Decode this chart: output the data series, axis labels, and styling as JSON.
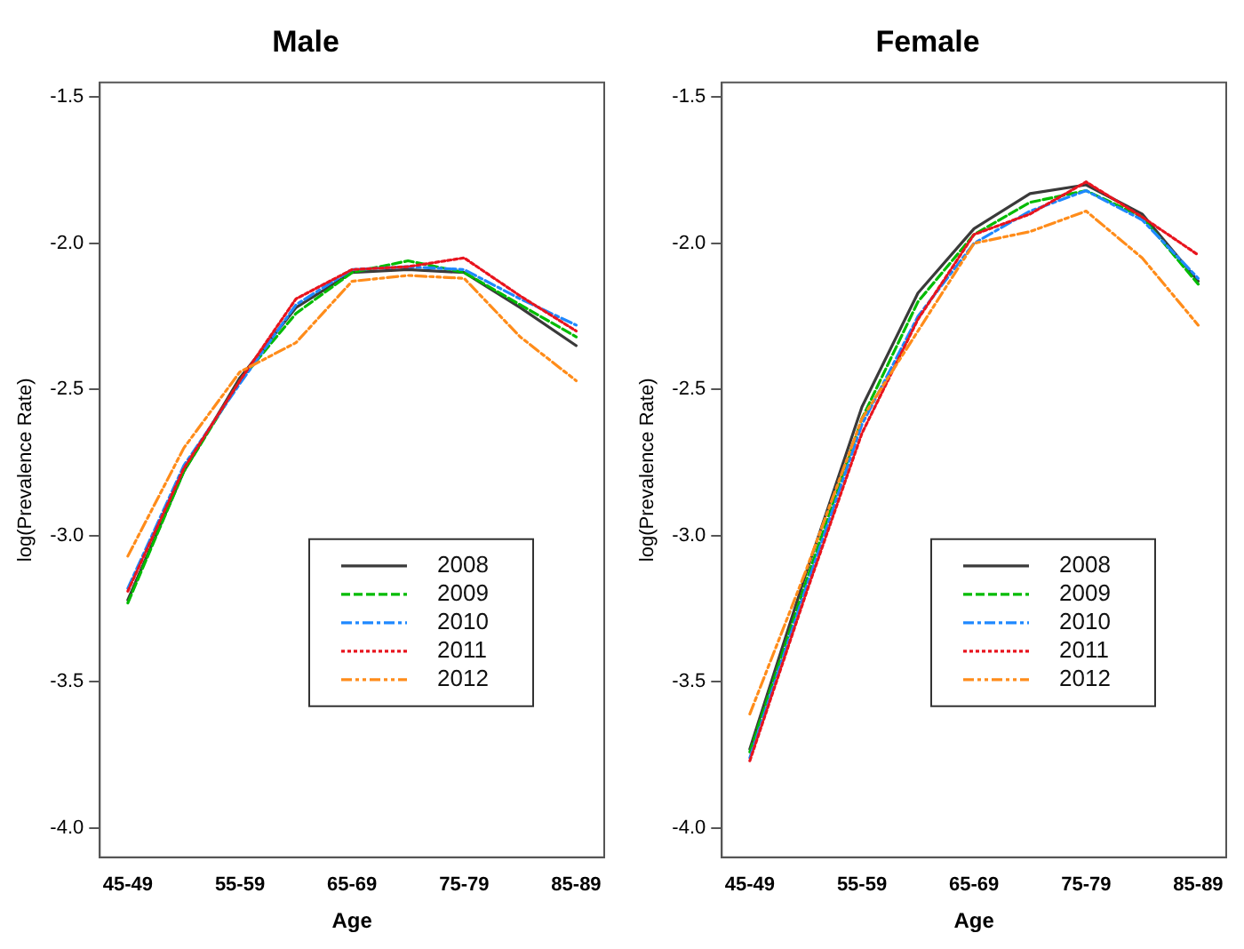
{
  "chart_data": [
    {
      "type": "line",
      "title": "Male",
      "xlabel": "Age",
      "ylabel": "log(Prevalence Rate)",
      "categories": [
        "45-49",
        null,
        "55-59",
        null,
        "65-69",
        null,
        "75-79",
        null,
        "85-89"
      ],
      "ylim": [
        -4.1,
        -1.45
      ],
      "yticks": [
        {
          "value": -4,
          "label": "-4.0"
        },
        -3.5,
        {
          "value": -3,
          "label": "-3.0"
        },
        -2.5,
        {
          "value": -2,
          "label": "-2.0"
        },
        -1.5
      ],
      "grid": false,
      "legend": "bottom right",
      "marker": "none",
      "series": [
        {
          "name": "2008",
          "color": "#3a3a3a",
          "line_style": "solid",
          "values": [
            -3.22,
            -2.78,
            -2.46,
            -2.22,
            -2.1,
            -2.09,
            -2.1,
            -2.22,
            -2.35
          ]
        },
        {
          "name": "2009",
          "color": "#00bb00",
          "line_style": "dashed",
          "values": [
            -3.23,
            -2.78,
            -2.47,
            -2.24,
            -2.1,
            -2.06,
            -2.1,
            -2.21,
            -2.32
          ]
        },
        {
          "name": "2010",
          "color": "#1e88ff",
          "line_style": "dashdot",
          "values": [
            -3.18,
            -2.76,
            -2.48,
            -2.21,
            -2.09,
            -2.08,
            -2.09,
            -2.19,
            -2.28
          ]
        },
        {
          "name": "2011",
          "color": "#e8141e",
          "line_style": "dotted",
          "values": [
            -3.19,
            -2.77,
            -2.47,
            -2.19,
            -2.09,
            -2.08,
            -2.05,
            -2.18,
            -2.3
          ]
        },
        {
          "name": "2012",
          "color": "#ff8c1a",
          "line_style": "dashdotdot",
          "values": [
            -3.07,
            -2.7,
            -2.44,
            -2.34,
            -2.13,
            -2.11,
            -2.12,
            -2.32,
            -2.47
          ]
        }
      ]
    },
    {
      "type": "line",
      "title": "Female",
      "xlabel": "Age",
      "ylabel": "log(Prevalence Rate)",
      "categories": [
        "45-49",
        null,
        "55-59",
        null,
        "65-69",
        null,
        "75-79",
        null,
        "85-89"
      ],
      "ylim": [
        -4.1,
        -1.45
      ],
      "yticks": [
        {
          "value": -4,
          "label": "-4.0"
        },
        -3.5,
        {
          "value": -3,
          "label": "-3.0"
        },
        -2.5,
        {
          "value": -2,
          "label": "-2.0"
        },
        -1.5
      ],
      "grid": false,
      "legend": "bottom right",
      "marker": "none",
      "series": [
        {
          "name": "2008",
          "color": "#3a3a3a",
          "line_style": "solid",
          "values": [
            -3.73,
            -3.13,
            -2.56,
            -2.17,
            -1.95,
            -1.83,
            -1.8,
            -1.9,
            -2.13
          ]
        },
        {
          "name": "2009",
          "color": "#00bb00",
          "line_style": "dashed",
          "values": [
            -3.74,
            -3.16,
            -2.6,
            -2.2,
            -1.97,
            -1.86,
            -1.82,
            -1.91,
            -2.14
          ]
        },
        {
          "name": "2010",
          "color": "#1e88ff",
          "line_style": "dashdot",
          "values": [
            -3.76,
            -3.18,
            -2.62,
            -2.25,
            -2.0,
            -1.89,
            -1.82,
            -1.92,
            -2.12
          ]
        },
        {
          "name": "2011",
          "color": "#e8141e",
          "line_style": "dotted",
          "values": [
            -3.77,
            -3.2,
            -2.65,
            -2.26,
            -1.97,
            -1.9,
            -1.79,
            -1.91,
            -2.04
          ]
        },
        {
          "name": "2012",
          "color": "#ff8c1a",
          "line_style": "dashdotdot",
          "values": [
            -3.61,
            -3.12,
            -2.6,
            -2.3,
            -2.0,
            -1.96,
            -1.89,
            -2.05,
            -2.28
          ]
        }
      ]
    }
  ]
}
